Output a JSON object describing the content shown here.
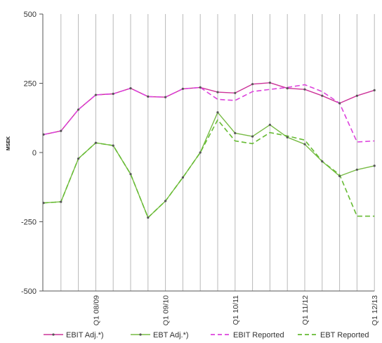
{
  "chart_data": {
    "type": "line",
    "title": "",
    "xlabel": "",
    "ylabel": "MSEK",
    "ylim": [
      -500,
      500
    ],
    "y_ticks": [
      500,
      250,
      0,
      -250,
      -500
    ],
    "x_tick_labels": [
      "Q1 08/09",
      "Q1 09/10",
      "Q1 10/11",
      "Q1 11/12",
      "Q1 12/13"
    ],
    "x_tick_positions": [
      3,
      7,
      11,
      15,
      19
    ],
    "x_count": 20,
    "grid": "vertical",
    "legend": "bottom",
    "series": [
      {
        "name": "EBIT Adj.*)",
        "color": "#cc3399",
        "style": "solid",
        "values": [
          65,
          78,
          155,
          208,
          212,
          232,
          202,
          200,
          230,
          235,
          218,
          215,
          247,
          252,
          232,
          228,
          205,
          178,
          205,
          225
        ]
      },
      {
        "name": "EBT Adj.*)",
        "color": "#77bb44",
        "style": "solid",
        "values": [
          -182,
          -178,
          -22,
          35,
          25,
          -78,
          -235,
          -175,
          -90,
          0,
          145,
          70,
          58,
          100,
          55,
          30,
          -32,
          -85,
          -62,
          -48
        ]
      },
      {
        "name": "EBIT Reported",
        "color": "#dd44dd",
        "style": "dashed",
        "values": [
          65,
          78,
          155,
          208,
          212,
          232,
          202,
          200,
          230,
          235,
          192,
          188,
          220,
          228,
          235,
          245,
          220,
          178,
          38,
          42
        ]
      },
      {
        "name": "EBT Reported",
        "color": "#66bb33",
        "style": "dashed",
        "values": [
          -182,
          -178,
          -22,
          35,
          25,
          -78,
          -235,
          -175,
          -90,
          0,
          118,
          42,
          32,
          72,
          60,
          45,
          -32,
          -80,
          -230,
          -230
        ]
      }
    ]
  }
}
